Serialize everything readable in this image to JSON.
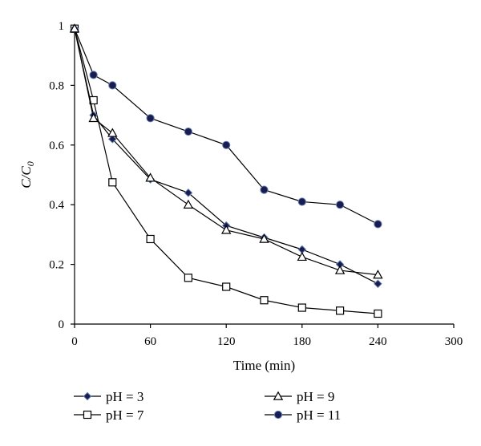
{
  "chart_data": {
    "type": "line",
    "xlabel": "Time (min)",
    "ylabel": "C/C",
    "ylabel_subscript": "0",
    "xlim": [
      0,
      300
    ],
    "ylim": [
      0,
      1
    ],
    "xticks": [
      0,
      60,
      120,
      180,
      240,
      300
    ],
    "yticks": [
      0,
      0.2,
      0.4,
      0.6,
      0.8,
      1
    ],
    "xtick_labels": [
      "0",
      "60",
      "120",
      "180",
      "240",
      "300"
    ],
    "ytick_labels": [
      "0",
      "0.2",
      "0.4",
      "0.6",
      "0.8",
      "1"
    ],
    "grid": false,
    "legend_position": "bottom",
    "series": [
      {
        "name": "pH = 3",
        "marker": "diamond",
        "x": [
          0,
          15,
          30,
          60,
          90,
          120,
          150,
          180,
          210,
          240
        ],
        "y": [
          0.99,
          0.7,
          0.62,
          0.485,
          0.44,
          0.33,
          0.29,
          0.25,
          0.2,
          0.135
        ]
      },
      {
        "name": "pH = 7",
        "marker": "square",
        "x": [
          0,
          15,
          30,
          60,
          90,
          120,
          150,
          180,
          210,
          240
        ],
        "y": [
          0.99,
          0.75,
          0.475,
          0.285,
          0.155,
          0.125,
          0.08,
          0.055,
          0.045,
          0.035
        ]
      },
      {
        "name": "pH = 9",
        "marker": "triangle",
        "x": [
          0,
          15,
          30,
          60,
          90,
          120,
          150,
          180,
          210,
          240
        ],
        "y": [
          0.99,
          0.69,
          0.64,
          0.49,
          0.4,
          0.315,
          0.285,
          0.225,
          0.18,
          0.165
        ]
      },
      {
        "name": "pH = 11",
        "marker": "circle",
        "x": [
          0,
          15,
          30,
          60,
          90,
          120,
          150,
          180,
          210,
          240
        ],
        "y": [
          0.99,
          0.835,
          0.8,
          0.69,
          0.645,
          0.6,
          0.45,
          0.41,
          0.4,
          0.335
        ]
      }
    ]
  },
  "colors": {
    "line": "#000000",
    "marker_fill_dark": "#1b1b4f",
    "marker_fill_open": "#ffffff"
  }
}
